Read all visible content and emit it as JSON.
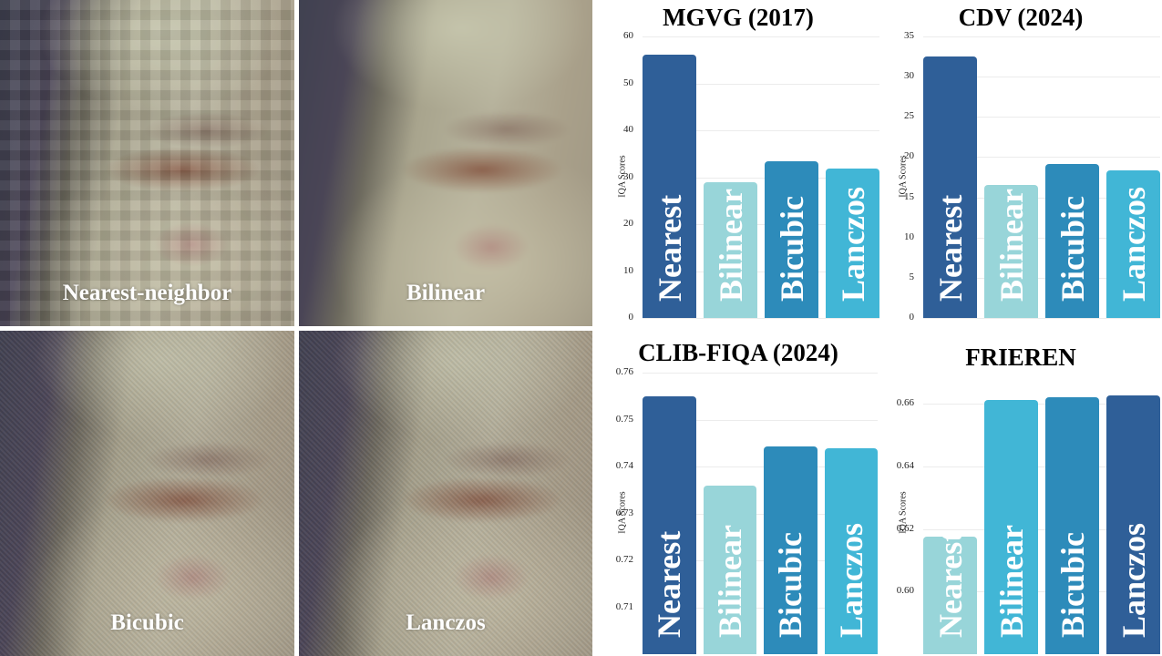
{
  "figure": {
    "image_panels": [
      {
        "label": "Nearest-neighbor"
      },
      {
        "label": "Bilinear"
      },
      {
        "label": "Bicubic"
      },
      {
        "label": "Lanczos"
      }
    ],
    "divider_color": "#ffffff"
  },
  "colors": {
    "Nearest_dark": "#2f5f98",
    "Bilinear_light": "#98d5d9",
    "Bicubic_mid": "#2d8bba",
    "Lanczos_cyan": "#41b6d6",
    "grid": "#ececec"
  },
  "chart_data": [
    {
      "type": "bar",
      "title": "MGVG (2017)",
      "xlabel": "",
      "ylabel": "IQA Scores",
      "categories": [
        "Nearest",
        "Bilinear",
        "Bicubic",
        "Lanczos"
      ],
      "values": [
        56.2,
        28.9,
        33.4,
        31.9
      ],
      "colors": [
        "#2f5f98",
        "#98d5d9",
        "#2d8bba",
        "#41b6d6"
      ],
      "ylim": [
        0,
        60
      ],
      "yticks": [
        "0",
        "10",
        "20",
        "30",
        "40",
        "50",
        "60"
      ],
      "grid": true,
      "legend": "none"
    },
    {
      "type": "bar",
      "title": "CDV (2024)",
      "xlabel": "",
      "ylabel": "IQA Scores",
      "categories": [
        "Nearest",
        "Bilinear",
        "Bicubic",
        "Lanczos"
      ],
      "values": [
        32.5,
        16.5,
        19.2,
        18.3
      ],
      "colors": [
        "#2f5f98",
        "#98d5d9",
        "#2d8bba",
        "#41b6d6"
      ],
      "ylim": [
        0,
        35
      ],
      "yticks": [
        "0",
        "5",
        "10",
        "15",
        "20",
        "25",
        "30",
        "35"
      ],
      "grid": true,
      "legend": "none"
    },
    {
      "type": "bar",
      "title": "CLIB-FIQA (2024)",
      "xlabel": "",
      "ylabel": "IQA Scores",
      "categories": [
        "Nearest",
        "Bilinear",
        "Bicubic",
        "Lanczos"
      ],
      "values": [
        0.755,
        0.736,
        0.7442,
        0.7439
      ],
      "colors": [
        "#2f5f98",
        "#98d5d9",
        "#2d8bba",
        "#41b6d6"
      ],
      "ylim": [
        0.7,
        0.76
      ],
      "yticks": [
        "0.71",
        "0.72",
        "0.73",
        "0.74",
        "0.75",
        "0.76"
      ],
      "grid": true,
      "legend": "none"
    },
    {
      "type": "bar",
      "title": "FRIEREN",
      "xlabel": "",
      "ylabel": "IQA Scores",
      "categories": [
        "Nearest",
        "Bilinear",
        "Bicubic",
        "Lanczos"
      ],
      "values": [
        0.6175,
        0.6613,
        0.662,
        0.6627
      ],
      "colors": [
        "#98d5d9",
        "#41b6d6",
        "#2d8bba",
        "#2f5f98"
      ],
      "ylim": [
        0.58,
        0.67
      ],
      "yticks": [
        "0.60",
        "0.62",
        "0.64",
        "0.66"
      ],
      "grid": true,
      "legend": "none"
    }
  ]
}
